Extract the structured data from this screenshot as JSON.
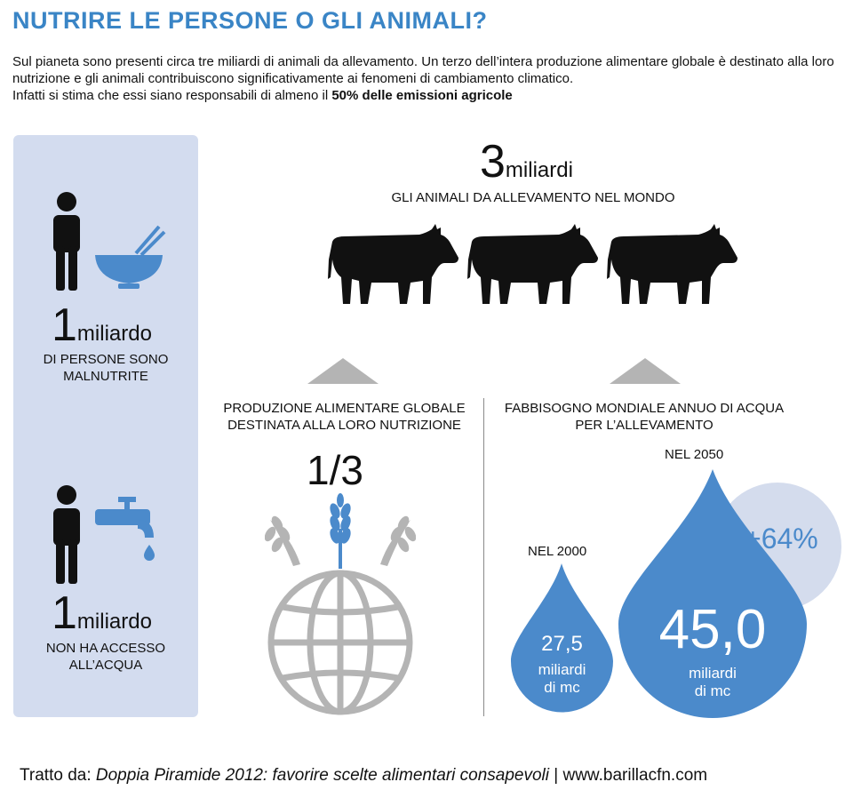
{
  "title": "NUTRIRE LE PERSONE O GLI ANIMALI?",
  "intro": {
    "line1": "Sul pianeta sono presenti circa tre miliardi di animali da allevamento. Un terzo dell’intera produzione alimentare globale è destinato alla loro nutrizione e gli animali contribuiscono significativamente ai fenomeni di cambiamento climatico.",
    "line2_prefix": "Infatti si stima che essi siano responsabili di almeno il ",
    "line2_bold": "50% delle emissioni agricole"
  },
  "left_panel": {
    "stat1": {
      "number": "1",
      "unit": "miliardo",
      "caption_line1": "DI PERSONE SONO",
      "caption_line2": "MALNUTRITE",
      "icons": [
        "person-icon",
        "bowl-icon"
      ]
    },
    "stat2": {
      "number": "1",
      "unit": "miliardo",
      "caption_line1": "NON HA ACCESSO",
      "caption_line2": "ALL’ACQUA",
      "icons": [
        "person-icon",
        "faucet-icon"
      ]
    }
  },
  "animals": {
    "number": "3",
    "unit": "miliardi",
    "caption": "GLI ANIMALI DA ALLEVAMENTO NEL MONDO",
    "icon": "cow-icon",
    "count_icons": 3
  },
  "food": {
    "caption_line1": "PRODUZIONE ALIMENTARE GLOBALE",
    "caption_line2": "DESTINATA  ALLA LORO NUTRIZIONE",
    "fraction": "1/3",
    "icon": "globe-wheat-icon"
  },
  "water": {
    "caption_line1": "FABBISOGNO MONDIALE ANNUO DI ACQUA",
    "caption_line2": "PER  L’ALLEVAMENTO",
    "year2000": {
      "label": "NEL 2000",
      "value": "27,5",
      "unit_line1": "miliardi",
      "unit_line2": "di mc"
    },
    "year2050": {
      "label": "NEL 2050",
      "value": "45,0",
      "unit_line1": "miliardi",
      "unit_line2": "di mc"
    },
    "increase": "+64%"
  },
  "footer": {
    "prefix": "Tratto da: ",
    "source": "Doppia Piramide 2012: favorire scelte alimentari consapevoli",
    "suffix": " | www.barillacfn.com"
  },
  "colors": {
    "accent": "#3a85c6",
    "drop": "#4b8acb",
    "panel": "#d3dcef",
    "circle": "#d4dced",
    "grey": "#b4b4b4"
  }
}
